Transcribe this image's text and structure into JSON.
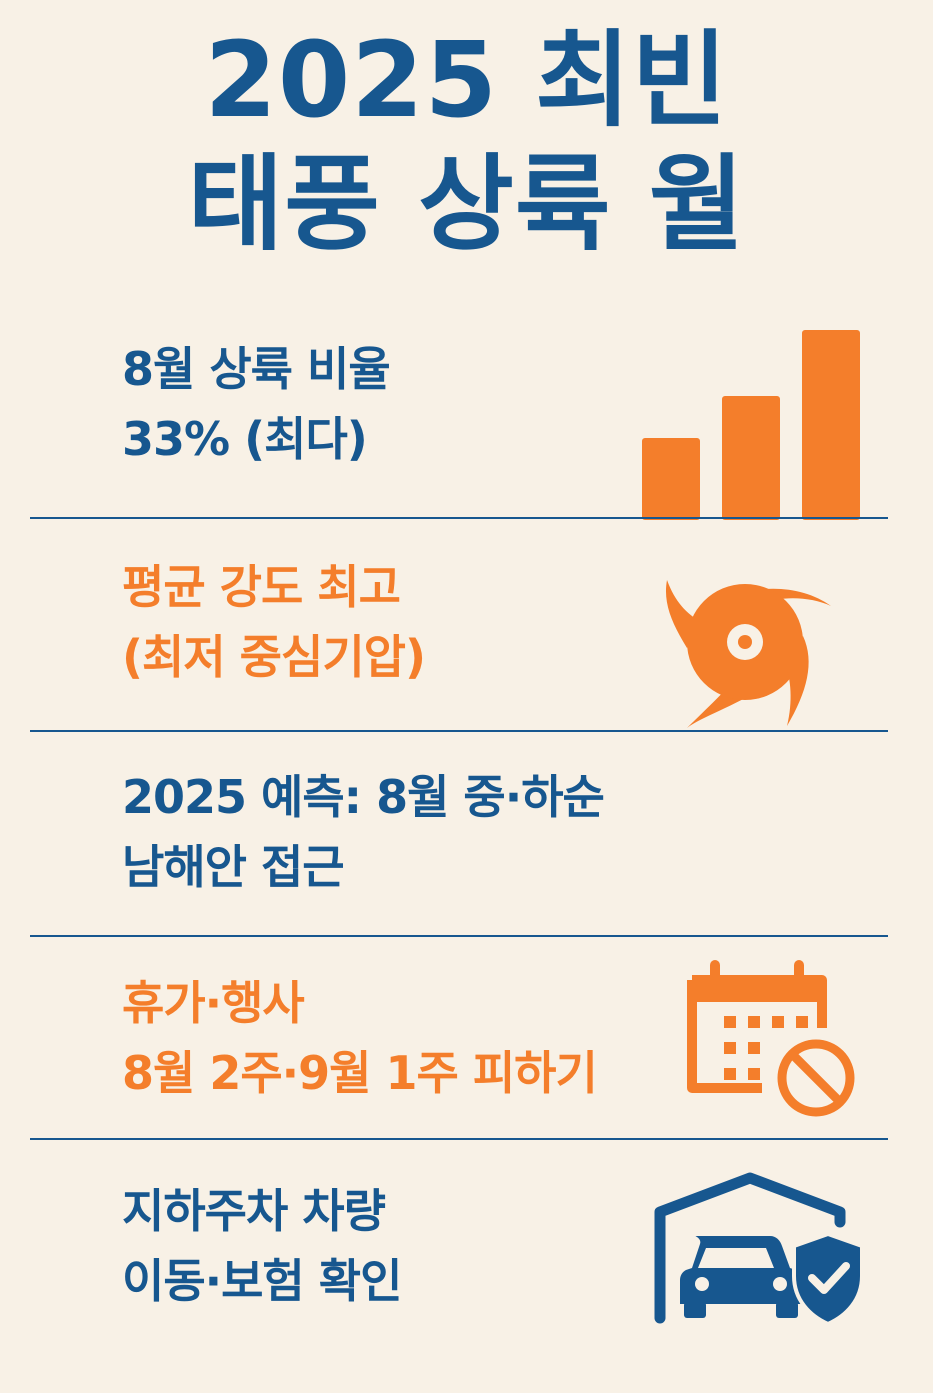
{
  "title": {
    "line1": "2025 최빈",
    "line2": "태풍 상륙 월"
  },
  "sections": [
    {
      "line1": "8월 상륙 비율",
      "line2": "33% (최다)",
      "icon": "bar-chart-icon"
    },
    {
      "line1": "평균 강도 최고",
      "line2": "(최저 중심기압)",
      "icon": "typhoon-icon"
    },
    {
      "line1": "2025 예측: 8월 중·하순",
      "line2": "남해안 접근",
      "icon": ""
    },
    {
      "line1": "휴가·행사",
      "line2": "8월 2주·9월 1주 피하기",
      "icon": "calendar-no-icon"
    },
    {
      "line1": "지하주차 차량",
      "line2": "이동·보험 확인",
      "icon": "garage-car-shield-icon"
    }
  ],
  "colors": {
    "background": "#f8f1e6",
    "blue": "#17578f",
    "orange": "#f47e2b"
  }
}
